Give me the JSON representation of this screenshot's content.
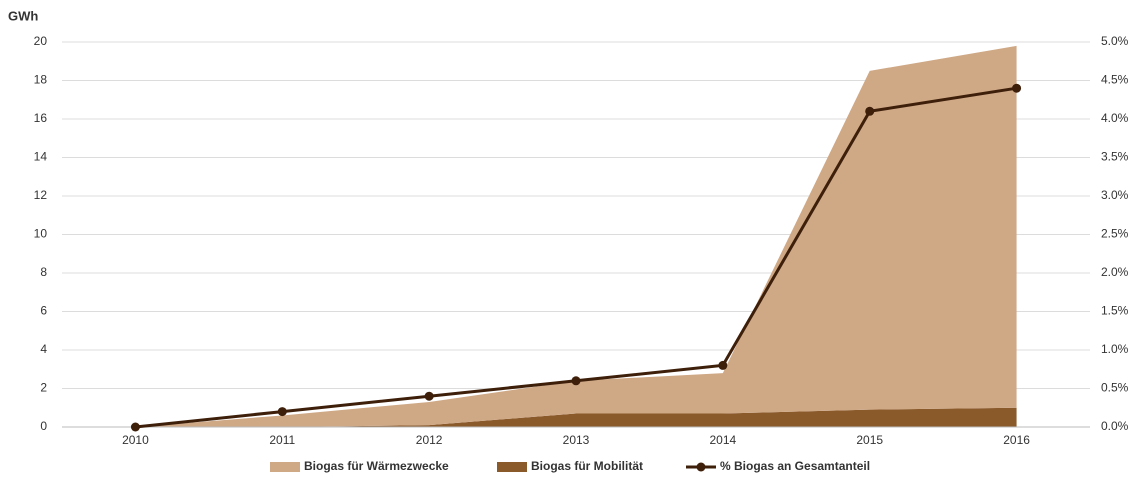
{
  "chart_data": {
    "type": "stacked-area-line",
    "y_label": "GWh",
    "x": [
      2010,
      2011,
      2012,
      2013,
      2014,
      2015,
      2016
    ],
    "xlim": [
      2009.5,
      2016.5
    ],
    "xticks": [
      2010,
      2011,
      2012,
      2013,
      2014,
      2015,
      2016
    ],
    "ylim": [
      0,
      20
    ],
    "yticks": [
      0,
      2,
      4,
      6,
      8,
      10,
      12,
      14,
      16,
      18,
      20
    ],
    "y2lim": [
      0,
      5
    ],
    "y2ticks": [
      {
        "value": 0,
        "label": "0.0%"
      },
      {
        "value": 0.5,
        "label": "0.5%"
      },
      {
        "value": 1,
        "label": "1.0%"
      },
      {
        "value": 1.5,
        "label": "1.5%"
      },
      {
        "value": 2,
        "label": "2.0%"
      },
      {
        "value": 2.5,
        "label": "2.5%"
      },
      {
        "value": 3,
        "label": "3.0%"
      },
      {
        "value": 3.5,
        "label": "3.5%"
      },
      {
        "value": 4,
        "label": "4.0%"
      },
      {
        "value": 4.5,
        "label": "4.5%"
      },
      {
        "value": 5,
        "label": "5.0%"
      }
    ],
    "grid": true,
    "legend": "bottom",
    "series": [
      {
        "name": "Biogas für Wärmezwecke",
        "type": "area",
        "color": "#cfa886",
        "values": [
          0,
          0.6,
          1.2,
          1.7,
          2.1,
          17.6,
          18.8
        ]
      },
      {
        "name": "Biogas für Mobilität",
        "type": "area",
        "color": "#8b5a2b",
        "values": [
          0,
          0,
          0.1,
          0.7,
          0.7,
          0.9,
          1.0
        ]
      },
      {
        "name": "% Biogas an Gesamtanteil",
        "type": "line",
        "axis": "y2",
        "color": "#3d1f0a",
        "values": [
          0,
          0.2,
          0.4,
          0.6,
          0.8,
          4.1,
          4.4
        ]
      }
    ]
  }
}
